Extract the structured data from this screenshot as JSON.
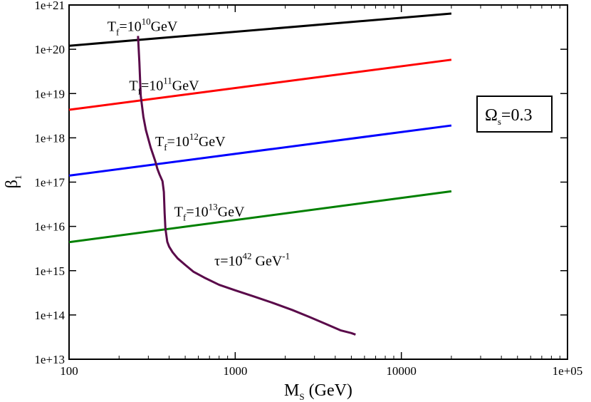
{
  "chart_data": {
    "type": "line",
    "x_scale": "log",
    "y_scale": "log",
    "xlim": [
      100,
      100000
    ],
    "ylim": [
      10000000000000.0,
      1e+21
    ],
    "x_ticks": [
      {
        "value": 100,
        "label": "100"
      },
      {
        "value": 1000,
        "label": "1000"
      },
      {
        "value": 10000,
        "label": "10000"
      },
      {
        "value": 100000,
        "label": "1e+05"
      }
    ],
    "y_ticks": [
      {
        "value": 10000000000000.0,
        "label": "1e+13"
      },
      {
        "value": 100000000000000.0,
        "label": "1e+14"
      },
      {
        "value": 1000000000000000.0,
        "label": "1e+15"
      },
      {
        "value": 1e+16,
        "label": "1e+16"
      },
      {
        "value": 1e+17,
        "label": "1e+17"
      },
      {
        "value": 1e+18,
        "label": "1e+18"
      },
      {
        "value": 1e+19,
        "label": "1e+19"
      },
      {
        "value": 1e+20,
        "label": "1e+20"
      },
      {
        "value": 1e+21,
        "label": "1e+21"
      }
    ],
    "xlabel": {
      "main": "M",
      "sub": "S",
      "rest": " (GeV)"
    },
    "ylabel": {
      "main": "β",
      "sub": "1"
    },
    "legend": {
      "main": "Ω",
      "sub": "s",
      "rest": "=0.3",
      "position": "right"
    },
    "series": [
      {
        "name": "Tf=10^10 GeV",
        "color": "#000000",
        "x": [
          100,
          20000
        ],
        "y": [
          1.2e+20,
          6.4e+20
        ],
        "label": {
          "pre": "T",
          "sub": "f",
          "mid": "=10",
          "sup": "10",
          "post": "GeV",
          "x": 170,
          "y": 2.6e+20
        }
      },
      {
        "name": "Tf=10^11 GeV",
        "color": "#ff0000",
        "x": [
          100,
          20000
        ],
        "y": [
          4.3e+18,
          5.8e+19
        ],
        "label": {
          "pre": "T",
          "sub": "f",
          "mid": "=10",
          "sup": "11",
          "post": "GeV",
          "x": 230,
          "y": 1.2e+19
        }
      },
      {
        "name": "Tf=10^12 GeV",
        "color": "#0000ff",
        "x": [
          100,
          20000
        ],
        "y": [
          1.4e+17,
          1.9e+18
        ],
        "label": {
          "pre": "T",
          "sub": "f",
          "mid": "=10",
          "sup": "12",
          "post": "GeV",
          "x": 330,
          "y": 6.5e+17
        }
      },
      {
        "name": "Tf=10^13 GeV",
        "color": "#008000",
        "x": [
          100,
          20000
        ],
        "y": [
          4400000000000000.0,
          6.2e+16
        ],
        "label": {
          "pre": "T",
          "sub": "f",
          "mid": "=10",
          "sup": "13",
          "post": "GeV",
          "x": 430,
          "y": 1.7e+16
        }
      },
      {
        "name": "tau=10^42 GeV^-1",
        "color": "#5a0a4a",
        "x": [
          260,
          265,
          270,
          280,
          290,
          310,
          330,
          340,
          350,
          365,
          372,
          376,
          380,
          390,
          400,
          420,
          450,
          500,
          560,
          650,
          800,
          1000,
          1300,
          1700,
          2200,
          2800,
          3500,
          4300,
          5000,
          5300
        ],
        "y": [
          2e+20,
          5e+19,
          9e+18,
          3e+18,
          1.5e+18,
          6e+17,
          3e+17,
          2e+17,
          1.5e+17,
          1.05e+17,
          6e+16,
          2e+16,
          9000000000000000.0,
          4500000000000000.0,
          3500000000000000.0,
          2600000000000000.0,
          1900000000000000.0,
          1350000000000000.0,
          950000000000000.0,
          700000000000000.0,
          480000000000000.0,
          360000000000000.0,
          260000000000000.0,
          185000000000000.0,
          130000000000000.0,
          90000000000000.0,
          63000000000000.0,
          45000000000000.0,
          39000000000000.0,
          36000000000000.0
        ],
        "label": {
          "pre": "τ=10",
          "sup": "42",
          "post": " GeV",
          "sup2": "-1",
          "x": 750,
          "y": 1300000000000000.0
        }
      }
    ]
  }
}
